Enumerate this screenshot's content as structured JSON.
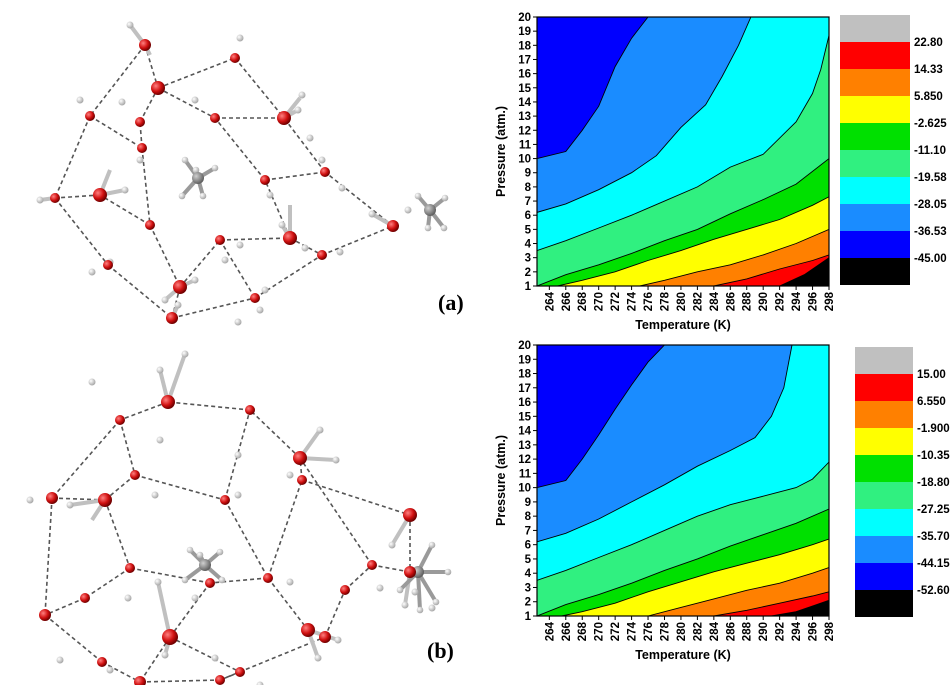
{
  "panel_labels": [
    "(a)",
    "(b)"
  ],
  "chart_data": [
    {
      "type": "contour",
      "panel": "(a)",
      "xlabel": "Temperature (K)",
      "ylabel": "Pressure (atm.)",
      "x_ticks": [
        264,
        266,
        268,
        270,
        272,
        274,
        276,
        278,
        280,
        282,
        284,
        286,
        288,
        290,
        292,
        294,
        296,
        298
      ],
      "y_ticks": [
        1,
        2,
        3,
        4,
        5,
        6,
        7,
        8,
        9,
        10,
        11,
        12,
        13,
        14,
        15,
        16,
        17,
        18,
        19,
        20
      ],
      "xlim": [
        262.5,
        298
      ],
      "ylim": [
        1,
        20
      ],
      "colorbar": {
        "levels": [
          22.8,
          14.33,
          5.85,
          -2.625,
          -11.1,
          -19.58,
          -28.05,
          -36.53,
          -45.0
        ],
        "labels": [
          "22.80",
          "14.33",
          "5.850",
          "-2.625",
          "-11.10",
          "-19.58",
          "-28.05",
          "-36.53",
          "-45.00"
        ],
        "colors": [
          "#c0c0c0",
          "#ff0000",
          "#ff8000",
          "#ffff00",
          "#00e000",
          "#30f080",
          "#00ffff",
          "#1a8cff",
          "#0000ff",
          "#000000"
        ]
      },
      "band_colors": [
        "#0000ff",
        "#1a8cff",
        "#00ffff",
        "#30f080",
        "#00e000",
        "#ffff00",
        "#ff8000",
        "#ff0000"
      ],
      "contour_lines": [
        {
          "x": [
            262.5,
            266,
            268,
            270,
            272,
            274,
            276
          ],
          "y": [
            10.0,
            10.5,
            12,
            13.7,
            16.5,
            18.5,
            20
          ]
        },
        {
          "x": [
            262.5,
            266,
            270,
            274,
            277,
            280,
            283,
            285,
            287,
            288.5
          ],
          "y": [
            6.2,
            6.8,
            7.8,
            9,
            10.2,
            12.2,
            13.8,
            15.8,
            18,
            20
          ]
        },
        {
          "x": [
            262.5,
            266,
            270,
            274,
            278,
            282,
            286,
            290,
            294,
            296,
            297,
            298
          ],
          "y": [
            3.5,
            4.2,
            5.1,
            6.0,
            7.0,
            8.0,
            9.4,
            10.3,
            12.6,
            14.6,
            16.3,
            18.7
          ]
        },
        {
          "x": [
            262.5,
            266,
            270,
            274,
            278,
            282,
            286,
            290,
            294,
            298
          ],
          "y": [
            1.0,
            1.8,
            2.5,
            3.3,
            4.2,
            5.0,
            6.1,
            7.1,
            8.2,
            10.0
          ]
        },
        {
          "x": [
            265,
            268,
            272,
            276,
            280,
            284,
            288,
            292,
            296,
            298
          ],
          "y": [
            1.0,
            1.4,
            2.0,
            2.8,
            3.5,
            4.3,
            5.0,
            5.7,
            6.7,
            7.3
          ]
        },
        {
          "x": [
            275,
            278,
            282,
            286,
            290,
            294,
            298
          ],
          "y": [
            1.0,
            1.4,
            2.0,
            2.5,
            3.2,
            4.0,
            5.0
          ]
        },
        {
          "x": [
            284,
            288,
            292,
            296,
            298
          ],
          "y": [
            1.0,
            1.5,
            2.2,
            2.8,
            3.2
          ]
        },
        {
          "x": [
            292,
            295,
            298
          ],
          "y": [
            1.0,
            1.8,
            3.0
          ]
        }
      ]
    },
    {
      "type": "contour",
      "panel": "(b)",
      "xlabel": "Temperature (K)",
      "ylabel": "Pressure (atm.)",
      "x_ticks": [
        264,
        266,
        268,
        270,
        272,
        274,
        276,
        278,
        280,
        282,
        284,
        286,
        288,
        290,
        292,
        294,
        296,
        298
      ],
      "y_ticks": [
        1,
        2,
        3,
        4,
        5,
        6,
        7,
        8,
        9,
        10,
        11,
        12,
        13,
        14,
        15,
        16,
        17,
        18,
        19,
        20
      ],
      "xlim": [
        262.5,
        298
      ],
      "ylim": [
        1,
        20
      ],
      "colorbar": {
        "levels": [
          15.0,
          6.55,
          -1.9,
          -10.35,
          -18.8,
          -27.25,
          -35.7,
          -44.15,
          -52.6
        ],
        "labels": [
          "15.00",
          "6.550",
          "-1.900",
          "-10.35",
          "-18.80",
          "-27.25",
          "-35.70",
          "-44.15",
          "-52.60"
        ],
        "colors": [
          "#c0c0c0",
          "#ff0000",
          "#ff8000",
          "#ffff00",
          "#00e000",
          "#30f080",
          "#00ffff",
          "#1a8cff",
          "#0000ff",
          "#000000"
        ]
      },
      "band_colors": [
        "#0000ff",
        "#1a8cff",
        "#00ffff",
        "#30f080",
        "#00e000",
        "#ffff00",
        "#ff8000",
        "#ff0000"
      ],
      "contour_lines": [
        {
          "x": [
            262.5,
            266,
            268,
            270,
            272,
            274,
            276,
            278
          ],
          "y": [
            10.0,
            10.5,
            12,
            13.7,
            15.5,
            17.2,
            18.8,
            20
          ]
        },
        {
          "x": [
            262.5,
            266,
            270,
            274,
            278,
            282,
            286,
            289,
            291,
            292.5,
            293.5
          ],
          "y": [
            6.2,
            6.8,
            7.8,
            9.0,
            10.2,
            11.5,
            12.6,
            13.5,
            15,
            17,
            20
          ]
        },
        {
          "x": [
            262.5,
            266,
            270,
            274,
            278,
            282,
            286,
            290,
            294,
            296,
            298
          ],
          "y": [
            3.5,
            4.2,
            5.1,
            6.0,
            7.0,
            8.0,
            8.8,
            9.4,
            10.0,
            10.6,
            11.8
          ]
        },
        {
          "x": [
            262.5,
            266,
            270,
            274,
            278,
            282,
            286,
            290,
            294,
            298
          ],
          "y": [
            1.0,
            1.8,
            2.5,
            3.3,
            4.2,
            5.0,
            5.9,
            6.7,
            7.5,
            8.5
          ]
        },
        {
          "x": [
            265.5,
            268,
            272,
            276,
            280,
            284,
            288,
            292,
            296,
            298
          ],
          "y": [
            1.0,
            1.3,
            1.9,
            2.7,
            3.4,
            4.1,
            4.7,
            5.3,
            6.0,
            6.4
          ]
        },
        {
          "x": [
            276,
            280,
            284,
            288,
            292,
            296,
            298
          ],
          "y": [
            1.0,
            1.6,
            2.2,
            2.8,
            3.3,
            4.0,
            4.4
          ]
        },
        {
          "x": [
            284,
            288,
            292,
            296,
            298
          ],
          "y": [
            1.0,
            1.4,
            1.9,
            2.4,
            2.7
          ]
        },
        {
          "x": [
            291,
            294,
            296,
            298
          ],
          "y": [
            1.0,
            1.3,
            1.7,
            2.1
          ]
        }
      ]
    }
  ]
}
